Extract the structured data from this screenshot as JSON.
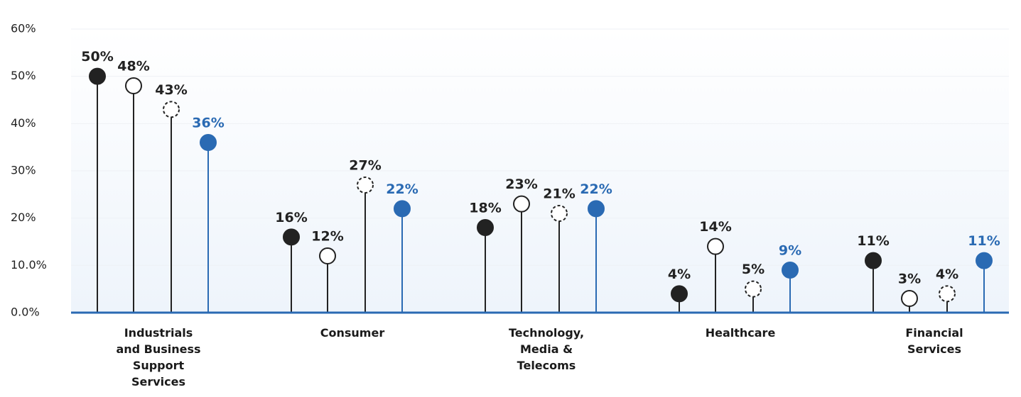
{
  "chart_data": {
    "type": "lollipop",
    "categories": [
      "Industrials and Business Support Services",
      "Consumer",
      "Technology, Media & Telecoms",
      "Healthcare",
      "Financial Services"
    ],
    "series": [
      {
        "color": "#222222",
        "marker": "filled",
        "values": [
          50,
          16,
          18,
          4,
          11
        ],
        "value_labels": [
          "50%",
          "16%",
          "18%",
          "4%",
          "11%"
        ]
      },
      {
        "color": "#222222",
        "marker": "hollow",
        "values": [
          48,
          12,
          23,
          14,
          3
        ],
        "value_labels": [
          "48%",
          "12%",
          "23%",
          "14%",
          "3%"
        ]
      },
      {
        "color": "#222222",
        "marker": "dashed",
        "values": [
          43,
          27,
          21,
          5,
          4
        ],
        "value_labels": [
          "43%",
          "27%",
          "21%",
          "5%",
          "4%"
        ]
      },
      {
        "color": "#2a6ab3",
        "marker": "filled",
        "values": [
          36,
          22,
          22,
          9,
          11
        ],
        "value_labels": [
          "36%",
          "22%",
          "22%",
          "9%",
          "11%"
        ]
      }
    ],
    "ylim": [
      0,
      60
    ],
    "yticks": [
      {
        "value": 0,
        "label": "0.0%"
      },
      {
        "value": 10,
        "label": "10.0%"
      },
      {
        "value": 20,
        "label": "20%"
      },
      {
        "value": 30,
        "label": "30%"
      },
      {
        "value": 40,
        "label": "40%"
      },
      {
        "value": 50,
        "label": "50%"
      },
      {
        "value": 60,
        "label": "60%"
      }
    ],
    "grid": true
  }
}
